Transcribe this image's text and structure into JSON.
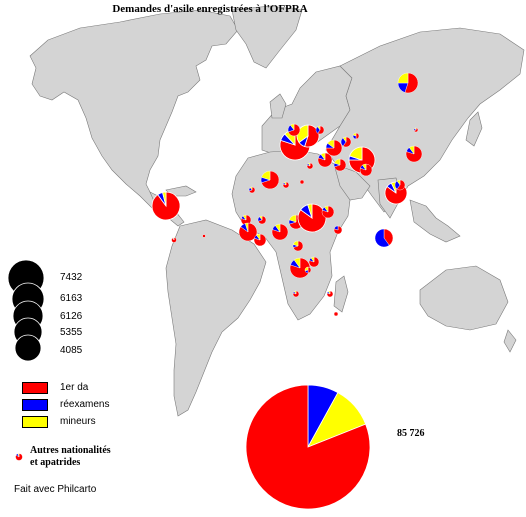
{
  "title": "Demandes d'asile enregistrées à l'OFPRA",
  "colors": {
    "ocean": "#ffffff",
    "land": "#d4d4d4",
    "border": "#7a7a7a",
    "first_request": "#ff0000",
    "reexam": "#0000ff",
    "minors": "#ffff00",
    "size_circle": "#000000"
  },
  "size_legend": [
    "7432",
    "6163",
    "6126",
    "5355",
    "4085"
  ],
  "category_legend": [
    {
      "label": "1er da",
      "color": "#ff0000"
    },
    {
      "label": "réexamens",
      "color": "#0000ff"
    },
    {
      "label": "mineurs",
      "color": "#ffff00"
    }
  ],
  "other_nationalities": {
    "line1": "Autres nationalités",
    "line2": "et apatrides",
    "icon": "small-pie-icon"
  },
  "total": {
    "value": "85 726",
    "shares": {
      "first_request": 0.81,
      "reexam": 0.08,
      "minors": 0.11
    }
  },
  "credit": "Fait avec Philcarto"
}
